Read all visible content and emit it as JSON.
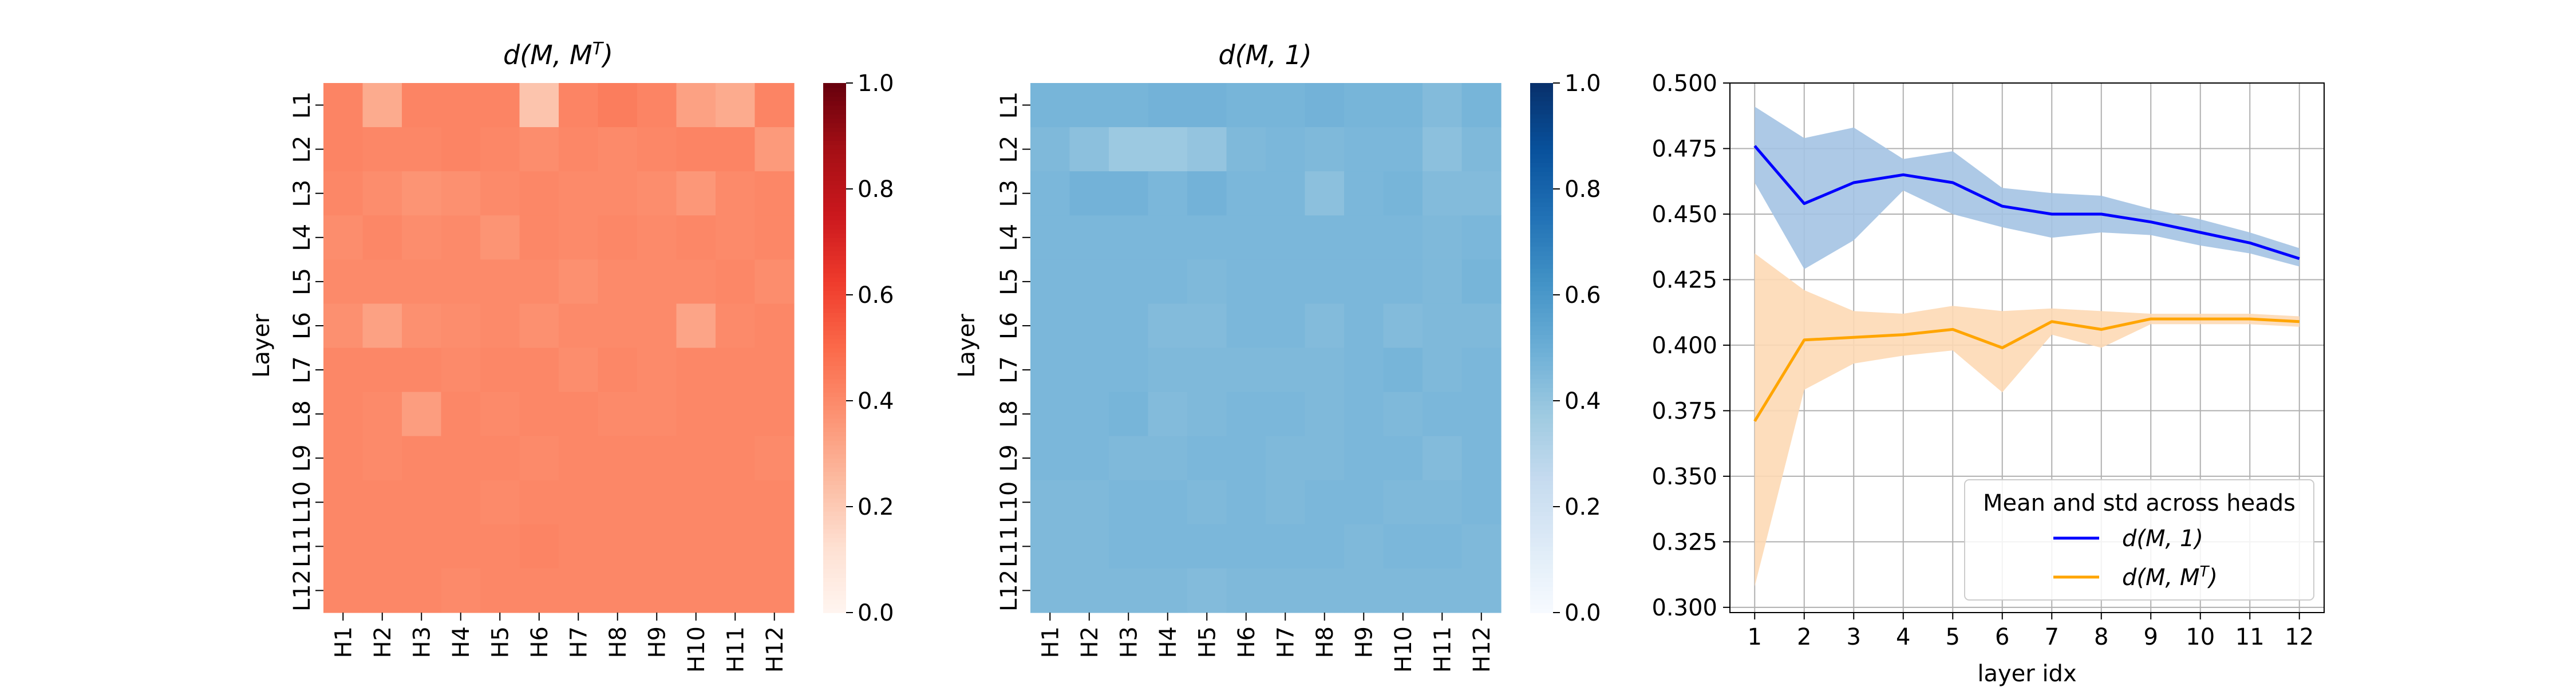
{
  "chart_data": [
    {
      "type": "heatmap",
      "title": "d(M, M^T)",
      "title_main": "d(M, M",
      "title_sup": "T",
      "title_close": ")",
      "ylabel": "Layer",
      "xlabel": "",
      "x_categories": [
        "H1",
        "H2",
        "H3",
        "H4",
        "H5",
        "H6",
        "H7",
        "H8",
        "H9",
        "H10",
        "H11",
        "H12"
      ],
      "y_categories": [
        "L1",
        "L2",
        "L3",
        "L4",
        "L5",
        "L6",
        "L7",
        "L8",
        "L9",
        "L10",
        "L11",
        "L12"
      ],
      "colormap": "Reds",
      "vmin": 0.0,
      "vmax": 1.0,
      "colorbar_ticks": [
        "0.0",
        "0.2",
        "0.4",
        "0.6",
        "0.8",
        "1.0"
      ],
      "values": [
        [
          0.42,
          0.3,
          0.42,
          0.42,
          0.42,
          0.22,
          0.42,
          0.44,
          0.42,
          0.33,
          0.3,
          0.42
        ],
        [
          0.42,
          0.41,
          0.41,
          0.42,
          0.41,
          0.39,
          0.41,
          0.4,
          0.41,
          0.42,
          0.42,
          0.35
        ],
        [
          0.41,
          0.39,
          0.37,
          0.38,
          0.4,
          0.41,
          0.4,
          0.4,
          0.39,
          0.36,
          0.4,
          0.41
        ],
        [
          0.39,
          0.41,
          0.39,
          0.4,
          0.37,
          0.41,
          0.4,
          0.41,
          0.4,
          0.41,
          0.4,
          0.41
        ],
        [
          0.4,
          0.4,
          0.4,
          0.4,
          0.4,
          0.4,
          0.38,
          0.4,
          0.4,
          0.4,
          0.41,
          0.39
        ],
        [
          0.38,
          0.33,
          0.38,
          0.39,
          0.4,
          0.38,
          0.4,
          0.4,
          0.4,
          0.32,
          0.4,
          0.41
        ],
        [
          0.41,
          0.41,
          0.41,
          0.4,
          0.41,
          0.41,
          0.39,
          0.41,
          0.4,
          0.41,
          0.41,
          0.41
        ],
        [
          0.41,
          0.4,
          0.34,
          0.41,
          0.4,
          0.41,
          0.41,
          0.4,
          0.4,
          0.41,
          0.41,
          0.41
        ],
        [
          0.41,
          0.4,
          0.41,
          0.41,
          0.41,
          0.4,
          0.41,
          0.41,
          0.41,
          0.41,
          0.41,
          0.4
        ],
        [
          0.41,
          0.41,
          0.41,
          0.41,
          0.4,
          0.41,
          0.41,
          0.41,
          0.41,
          0.41,
          0.41,
          0.41
        ],
        [
          0.41,
          0.41,
          0.41,
          0.41,
          0.41,
          0.42,
          0.41,
          0.41,
          0.41,
          0.41,
          0.41,
          0.41
        ],
        [
          0.41,
          0.41,
          0.41,
          0.4,
          0.41,
          0.41,
          0.41,
          0.41,
          0.41,
          0.41,
          0.41,
          0.41
        ]
      ]
    },
    {
      "type": "heatmap",
      "title": "d(M, 1)",
      "title_main": "d(M, 1)",
      "ylabel": "Layer",
      "xlabel": "",
      "x_categories": [
        "H1",
        "H2",
        "H3",
        "H4",
        "H5",
        "H6",
        "H7",
        "H8",
        "H9",
        "H10",
        "H11",
        "H12"
      ],
      "y_categories": [
        "L1",
        "L2",
        "L3",
        "L4",
        "L5",
        "L6",
        "L7",
        "L8",
        "L9",
        "L10",
        "L11",
        "L12"
      ],
      "colormap": "Blues",
      "vmin": 0.0,
      "vmax": 1.0,
      "colorbar_ticks": [
        "0.0",
        "0.2",
        "0.4",
        "0.6",
        "0.8",
        "1.0"
      ],
      "values": [
        [
          0.47,
          0.47,
          0.47,
          0.48,
          0.48,
          0.47,
          0.47,
          0.48,
          0.47,
          0.47,
          0.44,
          0.47
        ],
        [
          0.45,
          0.42,
          0.38,
          0.38,
          0.4,
          0.45,
          0.46,
          0.45,
          0.46,
          0.46,
          0.42,
          0.45
        ],
        [
          0.46,
          0.48,
          0.48,
          0.46,
          0.48,
          0.46,
          0.46,
          0.42,
          0.46,
          0.47,
          0.44,
          0.44
        ],
        [
          0.46,
          0.46,
          0.46,
          0.46,
          0.46,
          0.46,
          0.46,
          0.46,
          0.46,
          0.46,
          0.45,
          0.46
        ],
        [
          0.46,
          0.46,
          0.46,
          0.46,
          0.45,
          0.46,
          0.46,
          0.46,
          0.46,
          0.46,
          0.45,
          0.47
        ],
        [
          0.46,
          0.46,
          0.46,
          0.44,
          0.44,
          0.46,
          0.46,
          0.44,
          0.46,
          0.44,
          0.45,
          0.45
        ],
        [
          0.46,
          0.46,
          0.46,
          0.45,
          0.45,
          0.45,
          0.45,
          0.45,
          0.46,
          0.47,
          0.45,
          0.46
        ],
        [
          0.46,
          0.46,
          0.47,
          0.44,
          0.45,
          0.46,
          0.46,
          0.45,
          0.46,
          0.45,
          0.46,
          0.46
        ],
        [
          0.46,
          0.46,
          0.45,
          0.45,
          0.46,
          0.46,
          0.45,
          0.45,
          0.46,
          0.46,
          0.44,
          0.46
        ],
        [
          0.45,
          0.45,
          0.46,
          0.46,
          0.45,
          0.46,
          0.45,
          0.46,
          0.46,
          0.45,
          0.45,
          0.46
        ],
        [
          0.45,
          0.45,
          0.46,
          0.46,
          0.46,
          0.46,
          0.46,
          0.46,
          0.45,
          0.46,
          0.46,
          0.45
        ],
        [
          0.45,
          0.45,
          0.45,
          0.45,
          0.44,
          0.45,
          0.45,
          0.45,
          0.45,
          0.45,
          0.45,
          0.45
        ]
      ]
    },
    {
      "type": "line",
      "title": "",
      "xlabel": "layer idx",
      "ylabel": "",
      "x": [
        1,
        2,
        3,
        4,
        5,
        6,
        7,
        8,
        9,
        10,
        11,
        12
      ],
      "xlim": [
        0.5,
        12.5
      ],
      "ylim": [
        0.298,
        0.5
      ],
      "y_ticks": [
        0.3,
        0.325,
        0.35,
        0.375,
        0.4,
        0.425,
        0.45,
        0.475,
        0.5
      ],
      "y_tick_labels": [
        "0.300",
        "0.325",
        "0.350",
        "0.375",
        "0.400",
        "0.425",
        "0.450",
        "0.475",
        "0.500"
      ],
      "grid": true,
      "legend_title": "Mean and std across heads",
      "legend_position": "lower-right",
      "series": [
        {
          "name": "d(M, 1)",
          "name_main": "d(M, 1)",
          "color": "#0000ff",
          "band_color": "#a4c3e3",
          "values": [
            0.476,
            0.454,
            0.462,
            0.465,
            0.462,
            0.453,
            0.45,
            0.45,
            0.447,
            0.443,
            0.439,
            0.433
          ],
          "lower": [
            0.462,
            0.429,
            0.44,
            0.459,
            0.45,
            0.445,
            0.441,
            0.443,
            0.442,
            0.438,
            0.435,
            0.43
          ],
          "upper": [
            0.491,
            0.479,
            0.483,
            0.471,
            0.474,
            0.46,
            0.458,
            0.457,
            0.452,
            0.448,
            0.443,
            0.437
          ]
        },
        {
          "name": "d(M, M^T)",
          "name_main": "d(M, M",
          "name_sup": "T",
          "name_close": ")",
          "color": "#ffa500",
          "band_color": "#fdd9b5",
          "values": [
            0.371,
            0.402,
            0.403,
            0.404,
            0.406,
            0.399,
            0.409,
            0.406,
            0.41,
            0.41,
            0.41,
            0.409
          ],
          "lower": [
            0.308,
            0.383,
            0.393,
            0.396,
            0.398,
            0.382,
            0.404,
            0.399,
            0.408,
            0.408,
            0.408,
            0.407
          ],
          "upper": [
            0.435,
            0.421,
            0.413,
            0.412,
            0.415,
            0.413,
            0.414,
            0.413,
            0.412,
            0.412,
            0.412,
            0.411
          ]
        }
      ]
    }
  ]
}
